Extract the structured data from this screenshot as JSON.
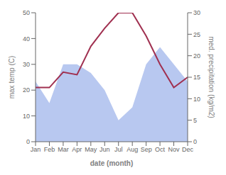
{
  "chart_data": {
    "type": "line",
    "xlabel": "date (month)",
    "ylabel": "max temp (C)",
    "y2label": "med. precipitation (kg/m2)",
    "categories": [
      "Jan",
      "Feb",
      "Mar",
      "Apr",
      "May",
      "Jun",
      "Jul",
      "Aug",
      "Sep",
      "Oct",
      "Nov",
      "Dec"
    ],
    "series": [
      {
        "type": "area",
        "axis": "y2",
        "color": "#b8c8f0",
        "values": [
          14,
          9,
          18,
          18,
          16,
          12,
          5,
          8,
          18,
          22,
          18,
          14
        ]
      },
      {
        "type": "line",
        "color": "#a03050",
        "values": [
          21,
          21,
          27,
          26,
          37,
          44,
          50,
          50,
          41,
          30,
          21,
          25
        ]
      }
    ],
    "ylim": [
      0,
      50
    ],
    "yticks": [
      0,
      10,
      20,
      30,
      40,
      50
    ],
    "y2lim": [
      0,
      30
    ],
    "y2ticks": [
      0,
      5,
      10,
      15,
      20,
      25,
      30
    ],
    "grid": false
  }
}
